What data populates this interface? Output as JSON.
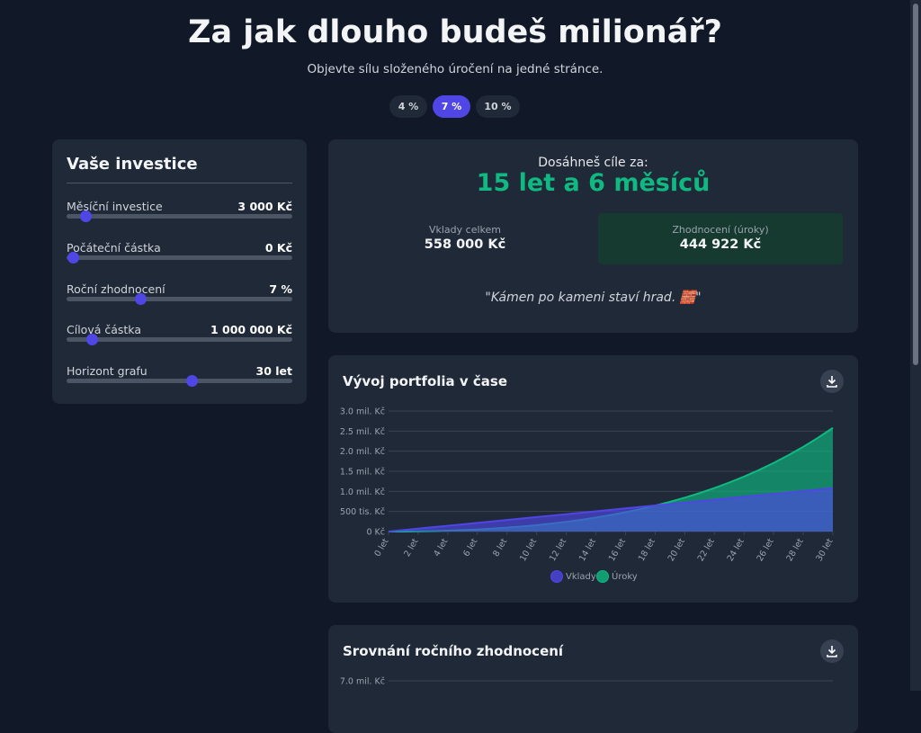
{
  "header": {
    "title": "Za jak dlouho budeš milionář?",
    "subtitle": "Objevte sílu složeného úročení na jedné stránce.",
    "rate_buttons": [
      "4 %",
      "7 %",
      "10 %"
    ]
  },
  "inputs": {
    "title": "Vaše investice",
    "sliders": [
      {
        "label": "Měsíční investice",
        "value": "3 000 Kč"
      },
      {
        "label": "Počáteční částka",
        "value": "0 Kč"
      },
      {
        "label": "Roční zhodnocení",
        "value": "7 %"
      },
      {
        "label": "Cílová částka",
        "value": "1 000 000 Kč"
      },
      {
        "label": "Horizont grafu",
        "value": "30 let"
      }
    ]
  },
  "result": {
    "label": "Dosáhneš cíle za:",
    "value": "15 let a 6 měsíců",
    "deposits_label": "Vklady celkem",
    "deposits_value": "558 000 Kč",
    "interest_label": "Zhodnocení (úroky)",
    "interest_value": "444 922 Kč",
    "quote": "\"Kámen po kameni staví hrad. 🧱\""
  },
  "chart_data": [
    {
      "type": "area",
      "title": "Vývoj portfolia v čase",
      "x": [
        0,
        1,
        2,
        3,
        4,
        5,
        6,
        7,
        8,
        9,
        10,
        11,
        12,
        13,
        14,
        15,
        16,
        17,
        18,
        19,
        20,
        21,
        22,
        23,
        24,
        25,
        26,
        27,
        28,
        29,
        30
      ],
      "xlim": [
        0,
        30
      ],
      "xticks": [
        {
          "value": 0,
          "label": "0 let"
        },
        {
          "value": 2,
          "label": "2 let"
        },
        {
          "value": 4,
          "label": "4 let"
        },
        {
          "value": 6,
          "label": "6 let"
        },
        {
          "value": 8,
          "label": "8 let"
        },
        {
          "value": 10,
          "label": "10 let"
        },
        {
          "value": 12,
          "label": "12 let"
        },
        {
          "value": 14,
          "label": "14 let"
        },
        {
          "value": 16,
          "label": "16 let"
        },
        {
          "value": 18,
          "label": "18 let"
        },
        {
          "value": 20,
          "label": "20 let"
        },
        {
          "value": 22,
          "label": "22 let"
        },
        {
          "value": 24,
          "label": "24 let"
        },
        {
          "value": 26,
          "label": "26 let"
        },
        {
          "value": 28,
          "label": "28 let"
        },
        {
          "value": 30,
          "label": "30 let"
        }
      ],
      "ylim": [
        0,
        3000000
      ],
      "yticks": [
        {
          "value": 0,
          "label": "0 Kč"
        },
        {
          "value": 500000,
          "label": "500 tis. Kč"
        },
        {
          "value": 1000000,
          "label": "1.0 mil. Kč"
        },
        {
          "value": 1500000,
          "label": "1.5 mil. Kč"
        },
        {
          "value": 2000000,
          "label": "2.0 mil. Kč"
        },
        {
          "value": 2500000,
          "label": "2.5 mil. Kč"
        },
        {
          "value": 3000000,
          "label": "3.0 mil. Kč"
        }
      ],
      "grid": true,
      "legend": "bottom",
      "series": [
        {
          "name": "Úroky",
          "color": "#10b981",
          "values": [
            0,
            1000,
            5000,
            12000,
            22000,
            35000,
            51000,
            72000,
            97000,
            126000,
            159000,
            198000,
            242000,
            292000,
            348000,
            411000,
            481000,
            558000,
            644000,
            739000,
            843000,
            957000,
            1082000,
            1219000,
            1368000,
            1530000,
            1707000,
            1900000,
            2108000,
            2335000,
            2580000
          ]
        },
        {
          "name": "Vklady",
          "color": "#4f46e5",
          "values": [
            0,
            36000,
            72000,
            108000,
            144000,
            180000,
            216000,
            252000,
            288000,
            324000,
            360000,
            396000,
            432000,
            468000,
            504000,
            540000,
            576000,
            612000,
            648000,
            684000,
            720000,
            756000,
            792000,
            828000,
            864000,
            900000,
            936000,
            972000,
            1008000,
            1044000,
            1080000
          ]
        }
      ]
    },
    {
      "type": "line",
      "title": "Srovnání ročního zhodnocení",
      "yticks": [
        {
          "value": 7000000,
          "label": "7.0 mil. Kč"
        }
      ]
    }
  ]
}
